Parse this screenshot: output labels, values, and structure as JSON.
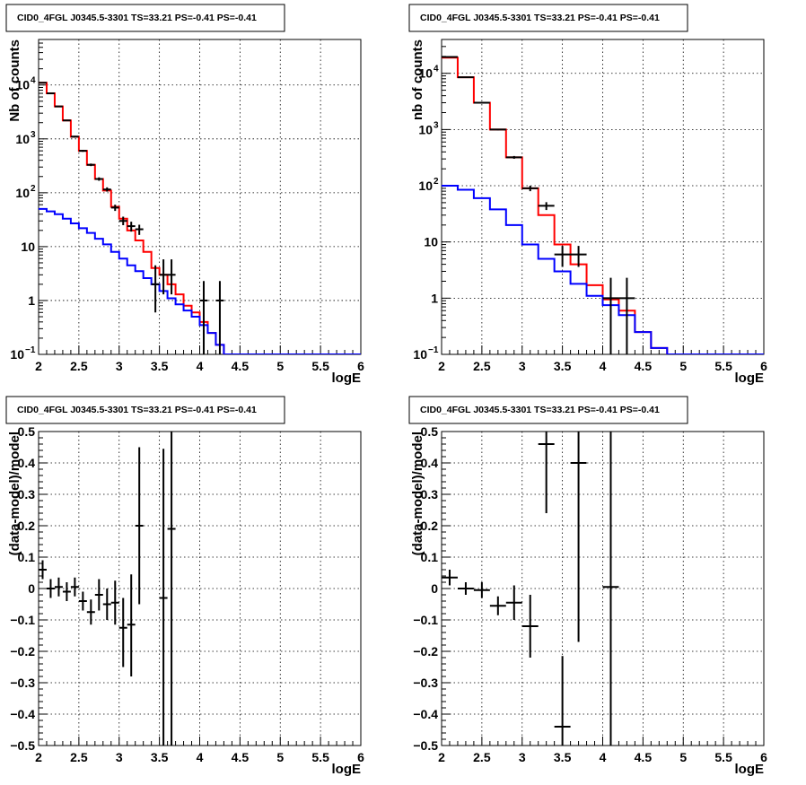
{
  "chart_data": [
    {
      "type": "histogram",
      "title": "CID0_4FGL J0345.5-3301 TS=33.21 PS=-0.41 PS=-0.41",
      "xlabel": "logE",
      "ylabel": "Nb of counts",
      "xlim": [
        2,
        6
      ],
      "ylim": [
        0.1,
        70000
      ],
      "yscale": "log",
      "grid": true,
      "xticks": [
        "2",
        "2.5",
        "3",
        "3.5",
        "4",
        "4.5",
        "5",
        "5.5",
        "6"
      ],
      "yticks": [
        {
          "value": 0.1,
          "label": "10",
          "exp": "−1"
        },
        {
          "value": 1,
          "label": "1",
          "exp": ""
        },
        {
          "value": 10,
          "label": "10",
          "exp": ""
        },
        {
          "value": 100,
          "label": "10",
          "exp": "2"
        },
        {
          "value": 1000,
          "label": "10",
          "exp": "3"
        },
        {
          "value": 10000,
          "label": "10",
          "exp": "4"
        }
      ],
      "edges": [
        2.0,
        2.1,
        2.2,
        2.3,
        2.4,
        2.5,
        2.6,
        2.7,
        2.8,
        2.9,
        3.0,
        3.1,
        3.2,
        3.3,
        3.4,
        3.5,
        3.6,
        3.7,
        3.8,
        3.9,
        4.0,
        4.1,
        4.2,
        4.3,
        4.4,
        4.5,
        4.6,
        4.7,
        4.8,
        4.9,
        5.0,
        5.1,
        5.2,
        5.3,
        5.4,
        5.5,
        5.6,
        5.7,
        5.8,
        5.9,
        6.0
      ],
      "series": [
        {
          "color": "#ff0000",
          "values": [
            11000,
            7000,
            4000,
            2200,
            1100,
            600,
            330,
            180,
            110,
            55,
            33,
            20,
            13,
            8,
            4,
            3,
            2,
            1.3,
            0.8,
            0.6,
            0.4,
            0.25,
            0.15,
            0.1,
            0.1,
            0.1,
            0.1,
            0.1,
            0.1,
            0.1,
            0.1,
            0.1,
            0.1,
            0.1,
            0.1,
            0.1,
            0.1,
            0.1,
            0.1,
            0.1
          ]
        },
        {
          "color": "#0000ff",
          "values": [
            50,
            45,
            40,
            33,
            27,
            22,
            18,
            14,
            11,
            8,
            6,
            4.5,
            3.5,
            2.6,
            2,
            1.5,
            1.1,
            0.85,
            0.65,
            0.5,
            0.35,
            0.25,
            0.15,
            0.1,
            0.1,
            0.1,
            0.1,
            0.1,
            0.1,
            0.1,
            0.1,
            0.1,
            0.1,
            0.1,
            0.1,
            0.1,
            0.1,
            0.1,
            0.1,
            0.1
          ]
        }
      ],
      "points": [
        {
          "x": 2.05,
          "y": 11000,
          "ylo": 10800,
          "yhi": 11200,
          "dx": 0.05
        },
        {
          "x": 2.15,
          "y": 7000,
          "ylo": 6900,
          "yhi": 7100,
          "dx": 0.05
        },
        {
          "x": 2.25,
          "y": 4000,
          "ylo": 3930,
          "yhi": 4070,
          "dx": 0.05
        },
        {
          "x": 2.35,
          "y": 2200,
          "ylo": 2150,
          "yhi": 2250,
          "dx": 0.05
        },
        {
          "x": 2.45,
          "y": 1100,
          "ylo": 1060,
          "yhi": 1140,
          "dx": 0.05
        },
        {
          "x": 2.55,
          "y": 600,
          "ylo": 575,
          "yhi": 625,
          "dx": 0.05
        },
        {
          "x": 2.65,
          "y": 330,
          "ylo": 312,
          "yhi": 348,
          "dx": 0.05
        },
        {
          "x": 2.75,
          "y": 180,
          "ylo": 167,
          "yhi": 193,
          "dx": 0.05
        },
        {
          "x": 2.85,
          "y": 115,
          "ylo": 105,
          "yhi": 126,
          "dx": 0.05
        },
        {
          "x": 2.95,
          "y": 53,
          "ylo": 46,
          "yhi": 60,
          "dx": 0.05
        },
        {
          "x": 3.05,
          "y": 30,
          "ylo": 25,
          "yhi": 36,
          "dx": 0.05
        },
        {
          "x": 3.15,
          "y": 24,
          "ylo": 19,
          "yhi": 29,
          "dx": 0.05
        },
        {
          "x": 3.25,
          "y": 21,
          "ylo": 16.5,
          "yhi": 25.5,
          "dx": 0.05
        },
        {
          "x": 3.45,
          "y": 2,
          "ylo": 0.6,
          "yhi": 4.5,
          "dx": 0.05
        },
        {
          "x": 3.55,
          "y": 3,
          "ylo": 1.3,
          "yhi": 5.8,
          "dx": 0.05
        },
        {
          "x": 3.65,
          "y": 3,
          "ylo": 1.3,
          "yhi": 5.8,
          "dx": 0.05
        },
        {
          "x": 4.05,
          "y": 1,
          "ylo": 0.1,
          "yhi": 2.3,
          "dx": 0.05
        },
        {
          "x": 4.25,
          "y": 1,
          "ylo": 0.1,
          "yhi": 2.3,
          "dx": 0.05
        }
      ]
    },
    {
      "type": "histogram",
      "title": "CID0_4FGL J0345.5-3301 TS=33.21 PS=-0.41 PS=-0.41",
      "xlabel": "logE",
      "ylabel": "nb of counts",
      "xlim": [
        2,
        6
      ],
      "ylim": [
        0.1,
        40000
      ],
      "yscale": "log",
      "grid": true,
      "xticks": [
        "2",
        "2.5",
        "3",
        "3.5",
        "4",
        "4.5",
        "5",
        "5.5",
        "6"
      ],
      "yticks": [
        {
          "value": 0.1,
          "label": "10",
          "exp": "−1"
        },
        {
          "value": 1,
          "label": "1",
          "exp": ""
        },
        {
          "value": 10,
          "label": "10",
          "exp": ""
        },
        {
          "value": 100,
          "label": "10",
          "exp": "2"
        },
        {
          "value": 1000,
          "label": "10",
          "exp": "3"
        },
        {
          "value": 10000,
          "label": "10",
          "exp": "4"
        }
      ],
      "edges": [
        2.0,
        2.2,
        2.4,
        2.6,
        2.8,
        3.0,
        3.2,
        3.4,
        3.6,
        3.8,
        4.0,
        4.2,
        4.4,
        4.6,
        4.8,
        5.0,
        5.2,
        5.4,
        5.6,
        5.8,
        6.0
      ],
      "series": [
        {
          "color": "#ff0000",
          "values": [
            19000,
            8500,
            3000,
            1000,
            320,
            90,
            30,
            9,
            4,
            1.7,
            0.95,
            0.6,
            0.25,
            0.13,
            0.1,
            0.1,
            0.1,
            0.1,
            0.1,
            0.1
          ]
        },
        {
          "color": "#0000ff",
          "values": [
            100,
            85,
            60,
            38,
            20,
            9,
            5,
            3,
            1.8,
            1.1,
            0.75,
            0.5,
            0.25,
            0.13,
            0.1,
            0.1,
            0.1,
            0.1,
            0.1,
            0.1
          ]
        }
      ],
      "points": [
        {
          "x": 2.1,
          "y": 19500,
          "ylo": 19300,
          "yhi": 19700,
          "dx": 0.1
        },
        {
          "x": 2.3,
          "y": 8500,
          "ylo": 8400,
          "yhi": 8600,
          "dx": 0.1
        },
        {
          "x": 2.5,
          "y": 3000,
          "ylo": 2940,
          "yhi": 3060,
          "dx": 0.1
        },
        {
          "x": 2.7,
          "y": 1000,
          "ylo": 970,
          "yhi": 1030,
          "dx": 0.1
        },
        {
          "x": 2.9,
          "y": 320,
          "ylo": 302,
          "yhi": 338,
          "dx": 0.1
        },
        {
          "x": 3.1,
          "y": 90,
          "ylo": 80,
          "yhi": 100,
          "dx": 0.1
        },
        {
          "x": 3.3,
          "y": 44,
          "ylo": 37,
          "yhi": 51,
          "dx": 0.1
        },
        {
          "x": 3.5,
          "y": 6,
          "ylo": 3.6,
          "yhi": 8.5,
          "dx": 0.1
        },
        {
          "x": 3.7,
          "y": 6,
          "ylo": 3.6,
          "yhi": 8.5,
          "dx": 0.1
        },
        {
          "x": 4.1,
          "y": 1,
          "ylo": 0.1,
          "yhi": 2.3,
          "dx": 0.1
        },
        {
          "x": 4.3,
          "y": 1,
          "ylo": 0.1,
          "yhi": 2.3,
          "dx": 0.1
        }
      ]
    },
    {
      "type": "scatter",
      "title": "CID0_4FGL J0345.5-3301 TS=33.21 PS=-0.41 PS=-0.41",
      "xlabel": "logE",
      "ylabel": "(data-model)/model",
      "xlim": [
        2,
        6
      ],
      "ylim": [
        -0.5,
        0.5
      ],
      "yscale": "linear",
      "grid": true,
      "xticks": [
        "2",
        "2.5",
        "3",
        "3.5",
        "4",
        "4.5",
        "5",
        "5.5",
        "6"
      ],
      "yticks": [
        {
          "value": -0.5,
          "label": "−0.5",
          "exp": ""
        },
        {
          "value": -0.4,
          "label": "−0.4",
          "exp": ""
        },
        {
          "value": -0.3,
          "label": "−0.3",
          "exp": ""
        },
        {
          "value": -0.2,
          "label": "−0.2",
          "exp": ""
        },
        {
          "value": -0.1,
          "label": "−0.1",
          "exp": ""
        },
        {
          "value": 0,
          "label": "0",
          "exp": ""
        },
        {
          "value": 0.1,
          "label": "0.1",
          "exp": ""
        },
        {
          "value": 0.2,
          "label": "0.2",
          "exp": ""
        },
        {
          "value": 0.3,
          "label": "0.3",
          "exp": ""
        },
        {
          "value": 0.4,
          "label": "0.4",
          "exp": ""
        },
        {
          "value": 0.5,
          "label": "0.5",
          "exp": ""
        }
      ],
      "points": [
        {
          "x": 2.05,
          "y": 0.06,
          "ylo": 0.03,
          "yhi": 0.09,
          "dx": 0.05
        },
        {
          "x": 2.15,
          "y": 0.0,
          "ylo": -0.03,
          "yhi": 0.03,
          "dx": 0.05
        },
        {
          "x": 2.25,
          "y": 0.005,
          "ylo": -0.025,
          "yhi": 0.035,
          "dx": 0.05
        },
        {
          "x": 2.35,
          "y": -0.01,
          "ylo": -0.04,
          "yhi": 0.02,
          "dx": 0.05
        },
        {
          "x": 2.45,
          "y": 0.005,
          "ylo": -0.025,
          "yhi": 0.035,
          "dx": 0.05
        },
        {
          "x": 2.55,
          "y": -0.04,
          "ylo": -0.07,
          "yhi": -0.01,
          "dx": 0.05
        },
        {
          "x": 2.65,
          "y": -0.075,
          "ylo": -0.115,
          "yhi": -0.035,
          "dx": 0.05
        },
        {
          "x": 2.75,
          "y": -0.02,
          "ylo": -0.07,
          "yhi": 0.03,
          "dx": 0.05
        },
        {
          "x": 2.85,
          "y": -0.05,
          "ylo": -0.1,
          "yhi": 0.0,
          "dx": 0.05
        },
        {
          "x": 2.95,
          "y": -0.045,
          "ylo": -0.115,
          "yhi": 0.025,
          "dx": 0.05
        },
        {
          "x": 3.05,
          "y": -0.125,
          "ylo": -0.25,
          "yhi": -0.03,
          "dx": 0.05
        },
        {
          "x": 3.15,
          "y": -0.115,
          "ylo": -0.28,
          "yhi": 0.045,
          "dx": 0.05
        },
        {
          "x": 3.25,
          "y": 0.2,
          "ylo": -0.05,
          "yhi": 0.45,
          "dx": 0.05
        },
        {
          "x": 3.55,
          "y": -0.03,
          "ylo": -0.5,
          "yhi": 0.445,
          "dx": 0.05
        },
        {
          "x": 3.65,
          "y": 0.19,
          "ylo": -0.5,
          "yhi": 0.5,
          "dx": 0.05
        }
      ]
    },
    {
      "type": "scatter",
      "title": "CID0_4FGL J0345.5-3301 TS=33.21 PS=-0.41 PS=-0.41",
      "xlabel": "logE",
      "ylabel": "(data-model)/model",
      "xlim": [
        2,
        6
      ],
      "ylim": [
        -0.5,
        0.5
      ],
      "yscale": "linear",
      "grid": true,
      "xticks": [
        "2",
        "2.5",
        "3",
        "3.5",
        "4",
        "4.5",
        "5",
        "5.5",
        "6"
      ],
      "yticks": [
        {
          "value": -0.5,
          "label": "−0.5",
          "exp": ""
        },
        {
          "value": -0.4,
          "label": "−0.4",
          "exp": ""
        },
        {
          "value": -0.3,
          "label": "−0.3",
          "exp": ""
        },
        {
          "value": -0.2,
          "label": "−0.2",
          "exp": ""
        },
        {
          "value": -0.1,
          "label": "−0.1",
          "exp": ""
        },
        {
          "value": 0,
          "label": "0",
          "exp": ""
        },
        {
          "value": 0.1,
          "label": "0.1",
          "exp": ""
        },
        {
          "value": 0.2,
          "label": "0.2",
          "exp": ""
        },
        {
          "value": 0.3,
          "label": "0.3",
          "exp": ""
        },
        {
          "value": 0.4,
          "label": "0.4",
          "exp": ""
        },
        {
          "value": 0.5,
          "label": "0.5",
          "exp": ""
        }
      ],
      "points": [
        {
          "x": 2.1,
          "y": 0.035,
          "ylo": 0.01,
          "yhi": 0.06,
          "dx": 0.1
        },
        {
          "x": 2.3,
          "y": 0.0,
          "ylo": -0.02,
          "yhi": 0.02,
          "dx": 0.1
        },
        {
          "x": 2.5,
          "y": -0.005,
          "ylo": -0.03,
          "yhi": 0.02,
          "dx": 0.1
        },
        {
          "x": 2.7,
          "y": -0.055,
          "ylo": -0.085,
          "yhi": -0.025,
          "dx": 0.1
        },
        {
          "x": 2.9,
          "y": -0.045,
          "ylo": -0.1,
          "yhi": 0.01,
          "dx": 0.1
        },
        {
          "x": 3.1,
          "y": -0.12,
          "ylo": -0.22,
          "yhi": -0.02,
          "dx": 0.1
        },
        {
          "x": 3.3,
          "y": 0.46,
          "ylo": 0.24,
          "yhi": 0.5,
          "dx": 0.1
        },
        {
          "x": 3.5,
          "y": -0.44,
          "ylo": -0.5,
          "yhi": -0.215,
          "dx": 0.1
        },
        {
          "x": 3.7,
          "y": 0.4,
          "ylo": -0.17,
          "yhi": 0.5,
          "dx": 0.1
        },
        {
          "x": 4.1,
          "y": 0.005,
          "ylo": -0.5,
          "yhi": 0.5,
          "dx": 0.1
        }
      ]
    }
  ]
}
